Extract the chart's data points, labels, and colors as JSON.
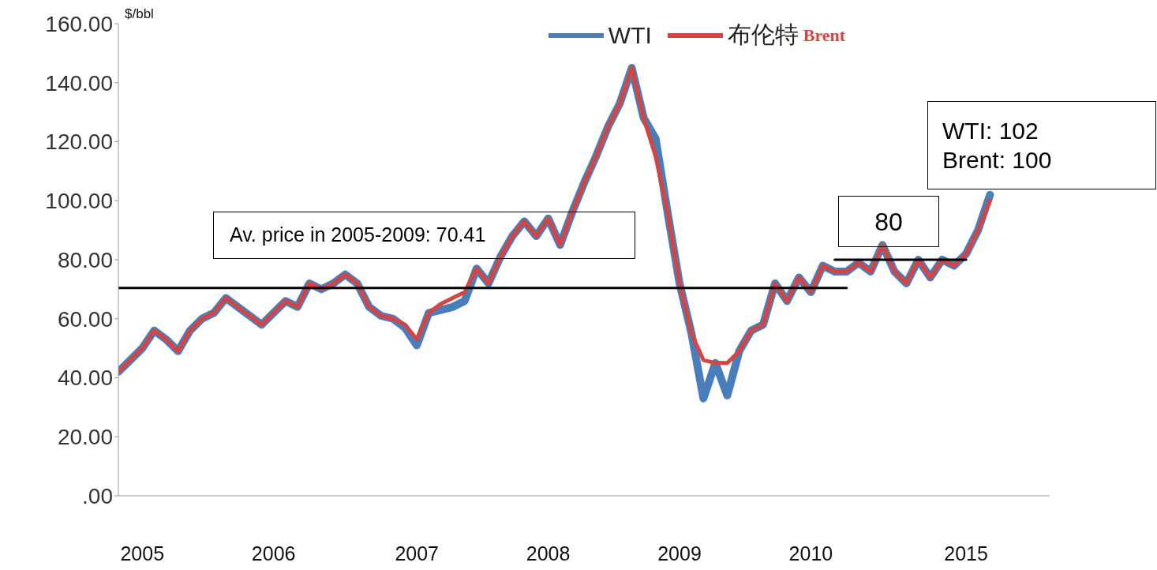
{
  "chart_data": {
    "type": "line",
    "ylabel": "$/bbl",
    "categories": [
      null,
      null,
      "2005",
      null,
      null,
      null,
      null,
      null,
      null,
      null,
      null,
      null,
      null,
      "2006",
      null,
      null,
      null,
      null,
      null,
      null,
      null,
      null,
      null,
      null,
      null,
      "2007",
      null,
      null,
      null,
      null,
      null,
      null,
      null,
      null,
      null,
      null,
      "2008",
      null,
      null,
      null,
      null,
      null,
      null,
      null,
      null,
      null,
      null,
      "2009",
      null,
      null,
      null,
      null,
      null,
      null,
      null,
      null,
      null,
      null,
      "2010",
      null,
      null,
      null,
      null,
      null,
      null,
      null,
      null,
      null,
      null,
      null,
      null,
      "2015",
      null,
      null,
      null,
      null,
      null,
      null,
      null
    ],
    "series": [
      {
        "name": "WTI",
        "color": "#4a7ebb",
        "values": [
          42,
          46,
          50,
          56,
          53,
          49,
          56,
          60,
          62,
          67,
          64,
          61,
          58,
          62,
          66,
          64,
          72,
          70,
          72,
          75,
          72,
          64,
          61,
          60,
          57,
          51,
          62,
          63,
          64,
          66,
          77,
          72,
          81,
          88,
          93,
          88,
          94,
          85,
          96,
          106,
          115,
          125,
          133,
          145,
          128,
          121,
          96,
          72,
          55,
          33,
          45,
          34,
          49,
          56,
          58,
          72,
          66,
          74,
          69,
          78,
          76,
          76,
          79,
          76,
          85,
          76,
          72,
          80,
          74,
          80,
          78,
          82,
          90,
          102,
          null,
          null,
          null,
          null,
          null
        ]
      },
      {
        "name": "布伦特 Brent",
        "color": "#d9433f",
        "values": [
          42,
          46,
          50,
          56,
          53,
          49,
          56,
          60,
          62,
          67,
          64,
          61,
          58,
          62,
          66,
          64,
          72,
          70,
          72,
          75,
          72,
          64,
          61,
          60,
          58,
          53,
          62,
          65,
          67,
          69,
          77,
          72,
          81,
          88,
          93,
          88,
          94,
          85,
          96,
          106,
          115,
          125,
          133,
          145,
          128,
          115,
          96,
          72,
          55,
          46,
          45,
          45,
          49,
          56,
          58,
          72,
          66,
          74,
          69,
          78,
          76,
          76,
          79,
          76,
          85,
          76,
          72,
          80,
          74,
          80,
          78,
          82,
          90,
          100,
          null,
          null,
          null,
          null,
          null
        ]
      },
      {
        "color": "#000000",
        "values": [
          70.41,
          70.41,
          70.41,
          70.41,
          70.41,
          70.41,
          70.41,
          70.41,
          70.41,
          70.41,
          70.41,
          70.41,
          70.41,
          70.41,
          70.41,
          70.41,
          70.41,
          70.41,
          70.41,
          70.41,
          70.41,
          70.41,
          70.41,
          70.41,
          70.41,
          70.41,
          70.41,
          70.41,
          70.41,
          70.41,
          70.41,
          70.41,
          70.41,
          70.41,
          70.41,
          70.41,
          70.41,
          70.41,
          70.41,
          70.41,
          70.41,
          70.41,
          70.41,
          70.41,
          70.41,
          70.41,
          70.41,
          70.41,
          70.41,
          70.41,
          70.41,
          70.41,
          70.41,
          70.41,
          70.41,
          70.41,
          70.41,
          70.41,
          70.41,
          70.41,
          70.41,
          70.41,
          null,
          null,
          null,
          null,
          null,
          null,
          null,
          null,
          null,
          null,
          null,
          null,
          null,
          null,
          null,
          null,
          null
        ]
      },
      {
        "color": "#000000",
        "values": [
          null,
          null,
          null,
          null,
          null,
          null,
          null,
          null,
          null,
          null,
          null,
          null,
          null,
          null,
          null,
          null,
          null,
          null,
          null,
          null,
          null,
          null,
          null,
          null,
          null,
          null,
          null,
          null,
          null,
          null,
          null,
          null,
          null,
          null,
          null,
          null,
          null,
          null,
          null,
          null,
          null,
          null,
          null,
          null,
          null,
          null,
          null,
          null,
          null,
          null,
          null,
          null,
          null,
          null,
          null,
          null,
          null,
          null,
          null,
          null,
          80,
          80,
          80,
          80,
          80,
          80,
          80,
          80,
          80,
          80,
          80,
          80,
          null,
          null,
          null,
          null,
          null,
          null,
          null
        ]
      }
    ],
    "ylim": [
      0,
      160
    ],
    "yticks": [
      {
        "value": 0,
        "label": ".00"
      },
      {
        "value": 20,
        "label": "20.00"
      },
      {
        "value": 40,
        "label": "40.00"
      },
      {
        "value": 60,
        "label": "60.00"
      },
      {
        "value": 80,
        "label": "80.00"
      },
      {
        "value": 100,
        "label": "100.00"
      },
      {
        "value": 120,
        "label": "120.00"
      },
      {
        "value": 140,
        "label": "140.00"
      },
      {
        "value": 160,
        "label": "160.00"
      }
    ],
    "annotations": [
      "Av. price in 2005-2009: 70.41",
      "80",
      "WTI: 102\nBrent: 100"
    ],
    "legend": "top",
    "grid": false,
    "marker": "none",
    "line_style": "solid"
  }
}
